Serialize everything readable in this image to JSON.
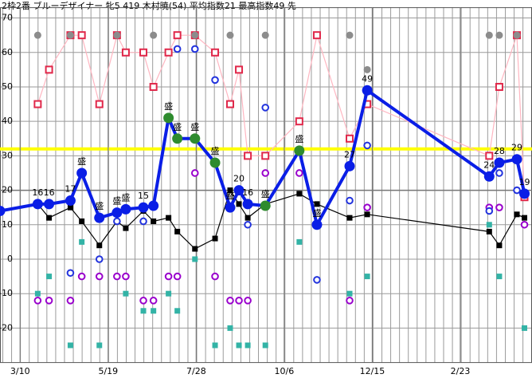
{
  "chart_data": {
    "type": "line",
    "title": "2枠2番 ブルーデザイナー 牝5 419 木村暁(54) 平均指数21 最高指数49 先",
    "xlim": [
      -16,
      407
    ],
    "xticks": [
      {
        "value": 0,
        "label": "3/10"
      },
      {
        "value": 70,
        "label": "5/19"
      },
      {
        "value": 140,
        "label": "7/28"
      },
      {
        "value": 210,
        "label": "10/6"
      },
      {
        "value": 280,
        "label": "12/15"
      },
      {
        "value": 350,
        "label": "2/23"
      }
    ],
    "ylim": [
      -30,
      73
    ],
    "yticks": [
      -20,
      -10,
      0,
      10,
      20,
      30,
      40,
      50,
      60,
      70
    ],
    "grid": true,
    "hlines": [
      {
        "value": 32,
        "color": "#ffff00",
        "width": 4
      },
      {
        "value": 20,
        "color": "#777777",
        "width": 1.5
      }
    ],
    "series": [
      {
        "style": "line",
        "marker": "hollow-square",
        "color": "#ffb6c1",
        "marker_color": "#e0284a",
        "x": [
          14,
          23,
          40,
          49,
          63,
          77,
          84,
          98,
          106,
          118,
          125,
          139,
          155,
          167,
          174,
          181,
          195,
          222,
          236,
          262,
          276,
          373,
          381,
          395,
          401
        ],
        "values": [
          45,
          55,
          65,
          65,
          45,
          65,
          60,
          60,
          50,
          60,
          65,
          65,
          60,
          45,
          55,
          30,
          30,
          40,
          65,
          35,
          45,
          30,
          50,
          65,
          18
        ]
      },
      {
        "style": "line",
        "marker": "square",
        "color": "#000000",
        "marker_color": "#000000",
        "x": [
          14,
          23,
          40,
          49,
          63,
          77,
          84,
          98,
          106,
          118,
          125,
          139,
          155,
          167,
          174,
          181,
          195,
          222,
          236,
          262,
          276,
          373,
          381,
          395,
          401
        ],
        "values": [
          16,
          12,
          15,
          11,
          4,
          11,
          9,
          14,
          11,
          12,
          8,
          3,
          6,
          20,
          16,
          12,
          16,
          19,
          16,
          12,
          13,
          8,
          4,
          13,
          12
        ]
      },
      {
        "style": "markers",
        "marker": "circle",
        "color": "#8c8c8c",
        "marker_color": "#8c8c8c",
        "x": [
          14,
          40,
          77,
          106,
          139,
          167,
          195,
          262,
          276,
          373,
          381,
          395
        ],
        "values": [
          65,
          65,
          65,
          65,
          65,
          65,
          65,
          65,
          55,
          65,
          65,
          65
        ]
      },
      {
        "style": "markers",
        "marker": "hollow-circle",
        "color": "#9900cc",
        "marker_color": "#9900cc",
        "x": [
          14,
          23,
          40,
          49,
          63,
          77,
          84,
          98,
          106,
          118,
          125,
          139,
          155,
          167,
          174,
          181,
          195,
          222,
          262,
          276,
          373,
          381,
          401
        ],
        "values": [
          -12,
          -12,
          -12,
          -5,
          -5,
          -5,
          -5,
          -12,
          -12,
          -5,
          -5,
          25,
          -5,
          -12,
          -12,
          -12,
          25,
          25,
          -12,
          15,
          15,
          15,
          10
        ]
      },
      {
        "style": "markers",
        "marker": "square",
        "color": "#33b3a6",
        "marker_color": "#33b3a6",
        "x": [
          14,
          23,
          40,
          49,
          63,
          84,
          98,
          106,
          118,
          125,
          139,
          155,
          167,
          174,
          181,
          195,
          222,
          262,
          276,
          373,
          381,
          401
        ],
        "values": [
          -10,
          -5,
          -25,
          5,
          -25,
          -10,
          -15,
          -15,
          -10,
          -15,
          0,
          -25,
          -20,
          -25,
          -25,
          -25,
          5,
          -10,
          -5,
          10,
          -5,
          -20
        ]
      },
      {
        "style": "markers",
        "marker": "hollow-circle",
        "color": "#2233dd",
        "marker_color": "#2233dd",
        "x": [
          40,
          63,
          77,
          98,
          125,
          139,
          155,
          181,
          195,
          236,
          262,
          276,
          373,
          381,
          395
        ],
        "values": [
          -4,
          0,
          11,
          11,
          61,
          61,
          52,
          10,
          44,
          -6,
          17,
          33,
          14,
          25,
          20
        ]
      },
      {
        "style": "line",
        "marker": "big-circle",
        "color": "#0a1ee6",
        "width": 4,
        "x": [
          -16,
          14,
          23,
          40,
          49,
          63,
          77,
          84,
          98,
          106,
          118,
          125,
          139,
          155,
          167,
          174,
          181,
          195,
          222,
          236,
          262,
          276,
          373,
          381,
          395,
          401
        ],
        "values": [
          14,
          16,
          16,
          17,
          25,
          12,
          13.5,
          14.5,
          15,
          15.5,
          41,
          35,
          35,
          28,
          15,
          20,
          16,
          15.5,
          31.5,
          10,
          27,
          49,
          24,
          28,
          29,
          19
        ],
        "marker_colors": [
          "#0a1ee6",
          "#0a1ee6",
          "#0a1ee6",
          "#0a1ee6",
          "#0a1ee6",
          "#0a1ee6",
          "#0a1ee6",
          "#0a1ee6",
          "#0a1ee6",
          "#0a1ee6",
          "#2e8b2e",
          "#2e8b2e",
          "#2e8b2e",
          "#2e8b2e",
          "#0a1ee6",
          "#0a1ee6",
          "#0a1ee6",
          "#2e8b2e",
          "#2e8b2e",
          "#0a1ee6",
          "#0a1ee6",
          "#0a1ee6",
          "#0a1ee6",
          "#0a1ee6",
          "#0a1ee6",
          "#0a1ee6"
        ],
        "point_labels": [
          null,
          "16",
          "16",
          "17",
          "盛",
          "盛",
          "盛",
          "盛",
          "15",
          null,
          "盛",
          "盛",
          "盛",
          "盛",
          "盛",
          "20",
          "16",
          "盛",
          "盛",
          "盛",
          "27",
          "49",
          "24",
          "28",
          "29",
          "19"
        ]
      }
    ]
  }
}
